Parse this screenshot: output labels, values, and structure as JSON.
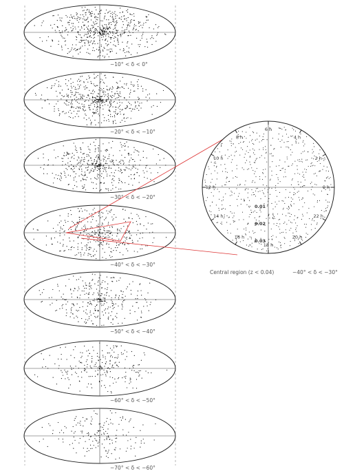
{
  "panels": [
    {
      "label": "−10° < δ < 0°"
    },
    {
      "label": "−20° < δ < −10°"
    },
    {
      "label": "−30° < δ < −20°"
    },
    {
      "label": "−40° < δ < −30°"
    },
    {
      "label": "−50° < δ < −40°"
    },
    {
      "label": "−60° < δ < −50°"
    },
    {
      "label": "−70° < δ < −60°"
    }
  ],
  "zoom": {
    "hours": [
      "6 h",
      "4 h",
      "2 h",
      "0 h",
      "22 h",
      "20 h",
      "18 h",
      "16 h",
      "14 h",
      "12 h",
      "10 h",
      "8 h"
    ],
    "radii": [
      "0.01",
      "0.02",
      "0.03"
    ],
    "caption": "Central region (z < 0.04)",
    "dec_label": "−40° < δ < −30°"
  }
}
